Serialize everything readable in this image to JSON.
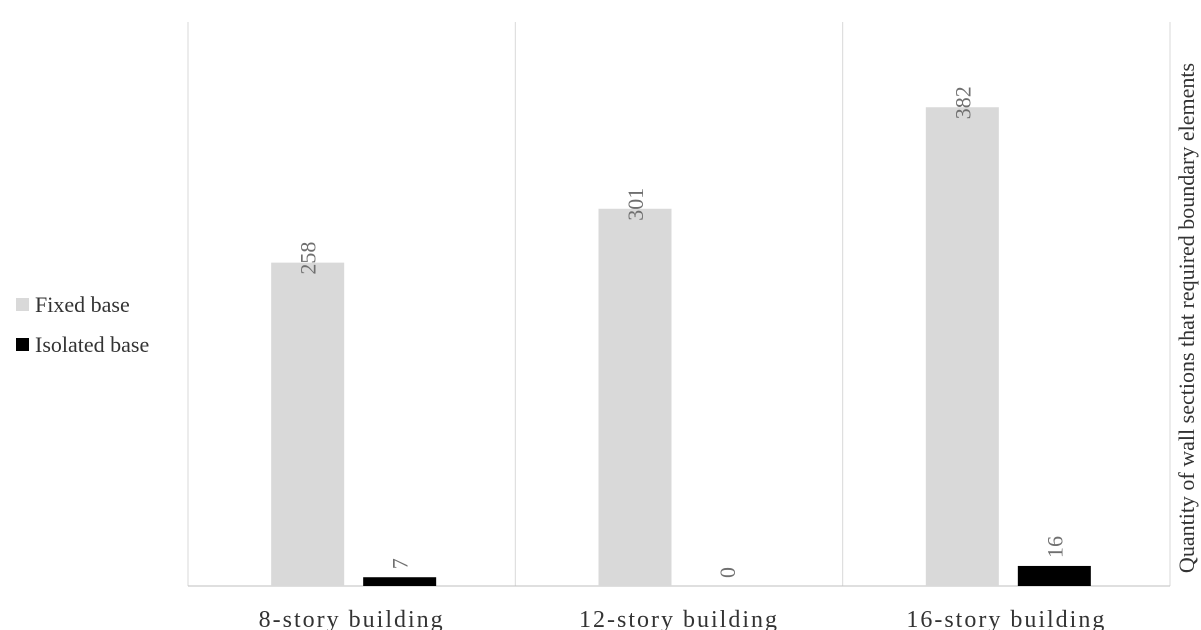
{
  "chart_data": {
    "type": "bar",
    "categories": [
      "8-story building",
      "12-story building",
      "16-story building"
    ],
    "series": [
      {
        "name": "Fixed base",
        "values": [
          258,
          301,
          382
        ],
        "color": "#d9d9d9"
      },
      {
        "name": "Isolated base",
        "values": [
          7,
          0,
          16
        ],
        "color": "#000000"
      }
    ],
    "title": "",
    "xlabel": "",
    "ylabel": "Quantity of wall sections that required boundary elements",
    "ylim": [
      0,
      450
    ],
    "grid": false,
    "legend_position": "left",
    "data_labels": true,
    "colors": {
      "category_divider": "#d9d9d9",
      "axis": "#bfbfbf",
      "value_label": "#6f6f6f",
      "text": "#333333"
    }
  }
}
